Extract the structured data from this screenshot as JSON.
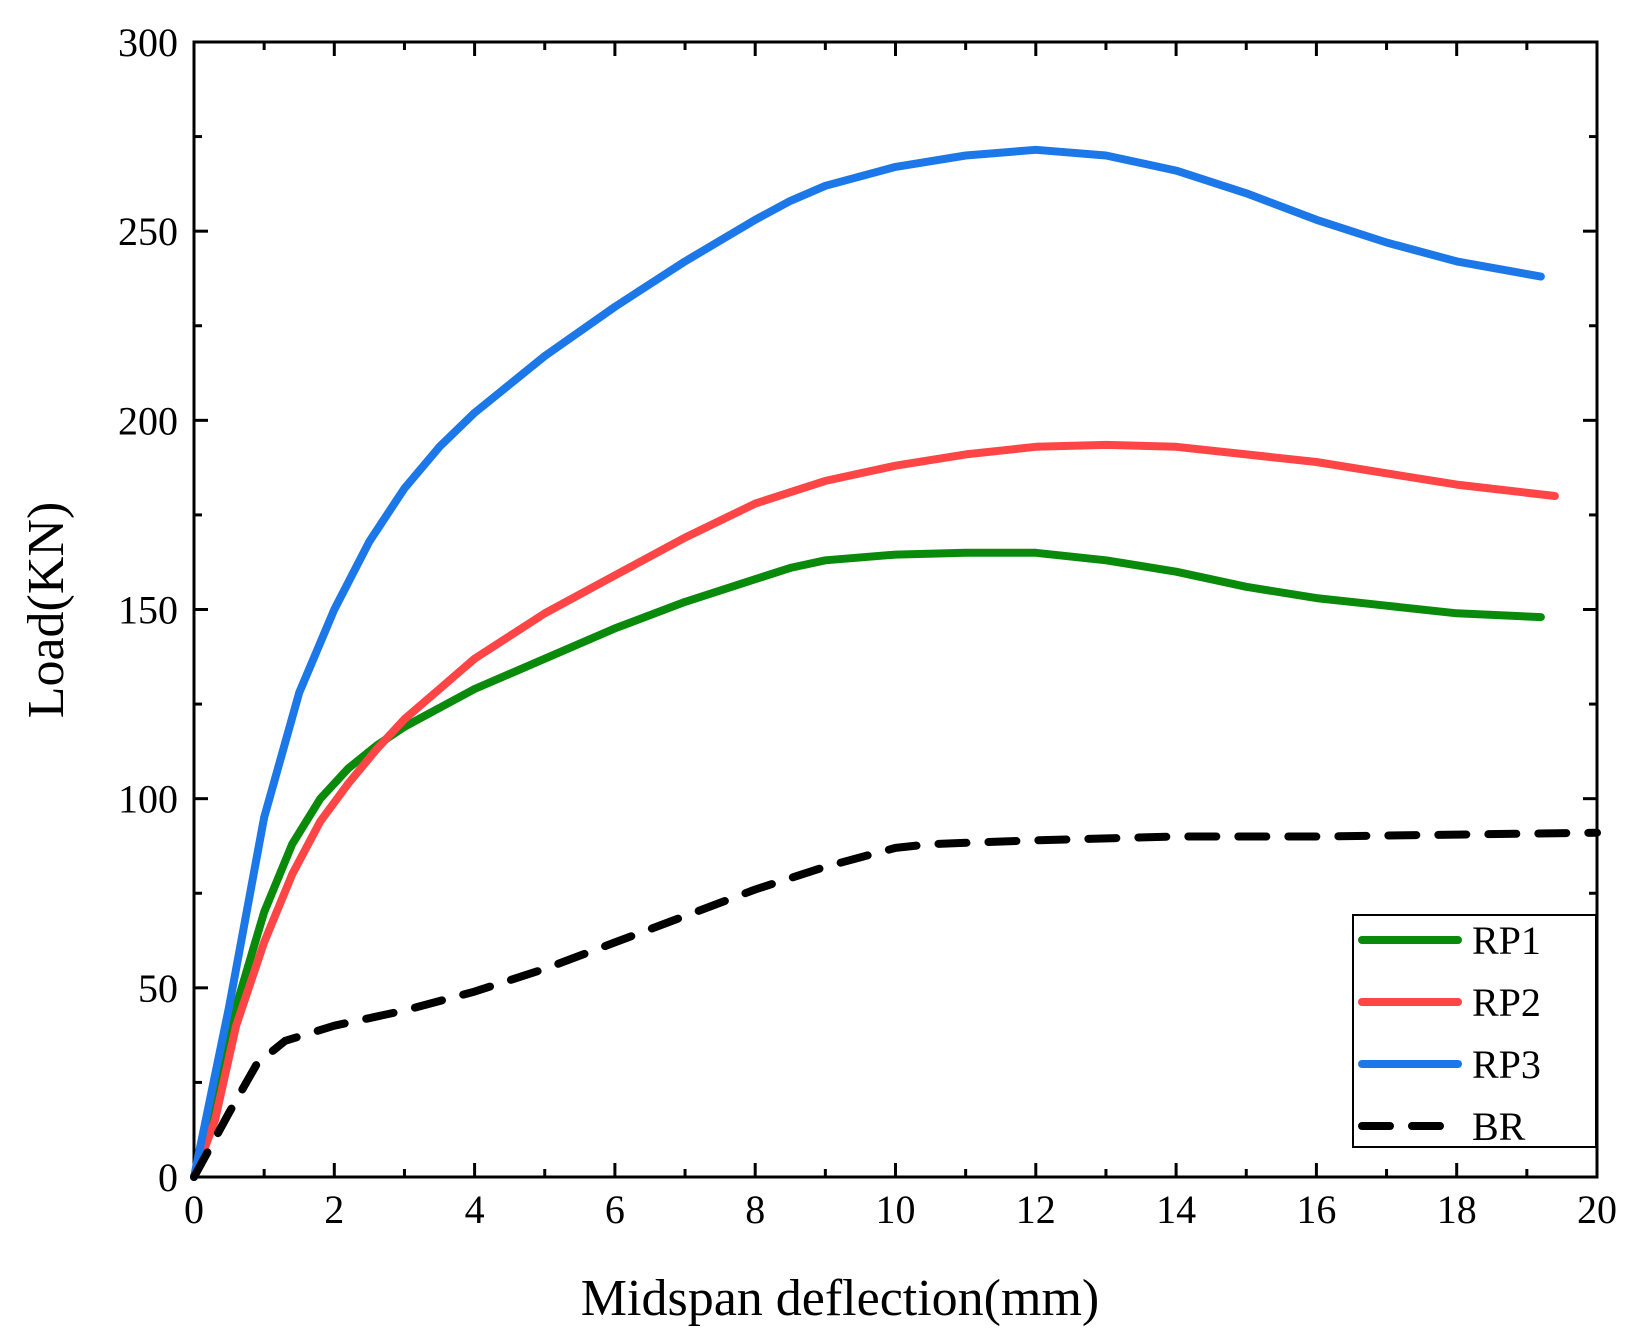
{
  "chart_data": {
    "type": "line",
    "title": "",
    "xlabel": "Midspan deflection(mm)",
    "ylabel": "Load(KN)",
    "xlim": [
      0,
      20
    ],
    "ylim": [
      0,
      300
    ],
    "xticks": [
      0,
      2,
      4,
      6,
      8,
      10,
      12,
      14,
      16,
      18,
      20
    ],
    "yticks": [
      0,
      50,
      100,
      150,
      200,
      250,
      300
    ],
    "xtick_labels": [
      "0",
      "2",
      "4",
      "6",
      "8",
      "10",
      "12",
      "14",
      "16",
      "18",
      "20"
    ],
    "ytick_labels": [
      "0",
      "50",
      "100",
      "150",
      "200",
      "250",
      "300"
    ],
    "grid": false,
    "legend_position": "bottom-right",
    "series": [
      {
        "name": "RP1",
        "color": "#0a8a0a",
        "dash": "solid",
        "points": [
          [
            0,
            0
          ],
          [
            0.3,
            20
          ],
          [
            0.6,
            45
          ],
          [
            1.0,
            70
          ],
          [
            1.4,
            88
          ],
          [
            1.8,
            100
          ],
          [
            2.2,
            108
          ],
          [
            2.6,
            114
          ],
          [
            3.0,
            119
          ],
          [
            3.5,
            124
          ],
          [
            4.0,
            129
          ],
          [
            5.0,
            137
          ],
          [
            6.0,
            145
          ],
          [
            7.0,
            152
          ],
          [
            8.0,
            158
          ],
          [
            8.5,
            161
          ],
          [
            9.0,
            163
          ],
          [
            10.0,
            164.5
          ],
          [
            11.0,
            165
          ],
          [
            12.0,
            165
          ],
          [
            13.0,
            163
          ],
          [
            14.0,
            160
          ],
          [
            15.0,
            156
          ],
          [
            16.0,
            153
          ],
          [
            17.0,
            151
          ],
          [
            18.0,
            149
          ],
          [
            19.2,
            148
          ]
        ]
      },
      {
        "name": "RP2",
        "color": "#ff4545",
        "dash": "solid",
        "points": [
          [
            0,
            0
          ],
          [
            0.3,
            15
          ],
          [
            0.6,
            40
          ],
          [
            1.0,
            62
          ],
          [
            1.4,
            80
          ],
          [
            1.8,
            94
          ],
          [
            2.2,
            104
          ],
          [
            2.6,
            113
          ],
          [
            3.0,
            121
          ],
          [
            3.5,
            129
          ],
          [
            4.0,
            137
          ],
          [
            5.0,
            149
          ],
          [
            6.0,
            159
          ],
          [
            7.0,
            169
          ],
          [
            8.0,
            178
          ],
          [
            8.5,
            181
          ],
          [
            9.0,
            184
          ],
          [
            10.0,
            188
          ],
          [
            11.0,
            191
          ],
          [
            12.0,
            193
          ],
          [
            13.0,
            193.5
          ],
          [
            14.0,
            193
          ],
          [
            15.0,
            191
          ],
          [
            16.0,
            189
          ],
          [
            17.0,
            186
          ],
          [
            18.0,
            183
          ],
          [
            19.4,
            180
          ]
        ]
      },
      {
        "name": "RP3",
        "color": "#1c78e8",
        "dash": "solid",
        "points": [
          [
            0,
            0
          ],
          [
            0.5,
            45
          ],
          [
            1.0,
            95
          ],
          [
            1.5,
            128
          ],
          [
            2.0,
            150
          ],
          [
            2.5,
            168
          ],
          [
            3.0,
            182
          ],
          [
            3.5,
            193
          ],
          [
            4.0,
            202
          ],
          [
            5.0,
            217
          ],
          [
            6.0,
            230
          ],
          [
            7.0,
            242
          ],
          [
            8.0,
            253
          ],
          [
            8.5,
            258
          ],
          [
            9.0,
            262
          ],
          [
            10.0,
            267
          ],
          [
            11.0,
            270
          ],
          [
            12.0,
            271.5
          ],
          [
            13.0,
            270
          ],
          [
            14.0,
            266
          ],
          [
            15.0,
            260
          ],
          [
            16.0,
            253
          ],
          [
            17.0,
            247
          ],
          [
            18.0,
            242
          ],
          [
            19.2,
            238
          ]
        ]
      },
      {
        "name": "BR",
        "color": "#000000",
        "dash": "dashed",
        "points": [
          [
            0,
            0
          ],
          [
            0.5,
            17
          ],
          [
            0.9,
            30
          ],
          [
            1.3,
            36
          ],
          [
            2.0,
            40
          ],
          [
            3.0,
            44
          ],
          [
            4.0,
            49
          ],
          [
            5.0,
            55
          ],
          [
            6.0,
            62
          ],
          [
            7.0,
            69
          ],
          [
            8.0,
            76
          ],
          [
            9.0,
            82
          ],
          [
            10.0,
            87
          ],
          [
            10.5,
            88
          ],
          [
            12.0,
            89
          ],
          [
            14.0,
            90
          ],
          [
            16.0,
            90
          ],
          [
            18.0,
            90.5
          ],
          [
            20.0,
            91
          ]
        ]
      }
    ]
  }
}
